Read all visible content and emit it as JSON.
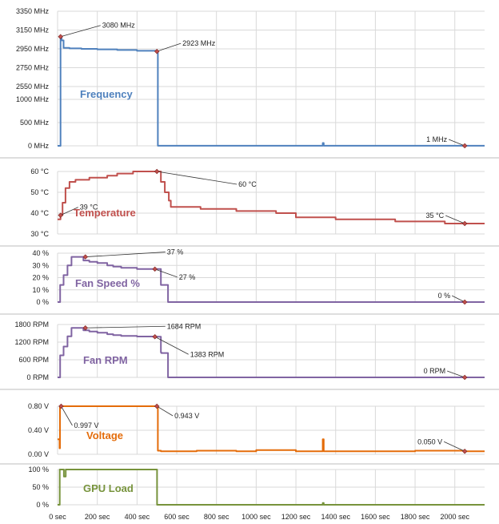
{
  "x_ticks": [
    "0 sec",
    "200 sec",
    "400 sec",
    "600 sec",
    "800 sec",
    "1000 sec",
    "1200 sec",
    "1400 sec",
    "1600 sec",
    "1800 sec",
    "2000 sec"
  ],
  "chart_data": [
    {
      "type": "line",
      "title": "Frequency",
      "color": "#4f81bd",
      "x_range": [
        0,
        2150
      ],
      "break_axis": true,
      "y_ticks_upper": [
        "3350 MHz",
        "3150 MHz",
        "2950 MHz",
        "2750 MHz",
        "2550 MHz"
      ],
      "y_ticks_lower": [
        "1000 MHz",
        "500 MHz",
        "0 MHz"
      ],
      "x": [
        0,
        12,
        15,
        20,
        30,
        60,
        120,
        200,
        300,
        400,
        495,
        500,
        505,
        1000,
        1330,
        1335,
        1340,
        2050,
        2150
      ],
      "y": [
        0,
        0,
        3080,
        3040,
        2960,
        2955,
        2950,
        2945,
        2938,
        2930,
        2923,
        2923,
        1,
        1,
        1,
        60,
        1,
        1,
        1
      ],
      "annotations": [
        {
          "label": "3080 MHz",
          "x": 15,
          "y": 3080
        },
        {
          "label": "2923 MHz",
          "x": 500,
          "y": 2923
        },
        {
          "label": "1 MHz",
          "x": 2050,
          "y": 1
        }
      ]
    },
    {
      "type": "line",
      "title": "Temperature",
      "color": "#c0504d",
      "x_range": [
        0,
        2150
      ],
      "y_ticks": [
        "60 °C",
        "50 °C",
        "40 °C",
        "30 °C"
      ],
      "x": [
        0,
        15,
        25,
        40,
        60,
        90,
        120,
        160,
        200,
        250,
        300,
        350,
        380,
        420,
        450,
        480,
        500,
        520,
        540,
        560,
        570,
        600,
        700,
        720,
        800,
        900,
        1000,
        1100,
        1150,
        1200,
        1300,
        1400,
        1500,
        1600,
        1700,
        1800,
        1900,
        1950,
        2000,
        2050,
        2150
      ],
      "y": [
        37,
        39,
        45,
        52,
        55,
        56,
        56,
        57,
        57,
        58,
        59,
        59,
        60,
        60,
        60,
        60,
        60,
        55,
        50,
        46,
        43,
        43,
        43,
        42,
        42,
        41,
        41,
        40,
        40,
        38,
        38,
        37,
        37,
        37,
        36,
        36,
        36,
        35,
        35,
        35,
        35
      ],
      "annotations": [
        {
          "label": "39 °C",
          "x": 15,
          "y": 39
        },
        {
          "label": "60 °C",
          "x": 500,
          "y": 60
        },
        {
          "label": "35 °C",
          "x": 2050,
          "y": 35
        }
      ]
    },
    {
      "type": "line",
      "title": "Fan Speed %",
      "color": "#8064a2",
      "x_range": [
        0,
        2150
      ],
      "y_ticks": [
        "40 %",
        "30 %",
        "20 %",
        "10 %",
        "0 %"
      ],
      "x": [
        0,
        12,
        13,
        30,
        50,
        70,
        90,
        120,
        130,
        160,
        200,
        250,
        280,
        320,
        400,
        480,
        500,
        520,
        522,
        555,
        556,
        2050,
        2150
      ],
      "y": [
        0,
        0,
        14,
        22,
        30,
        37,
        37,
        37,
        34,
        33,
        32,
        30,
        29,
        28,
        27,
        27,
        27,
        14,
        14,
        14,
        0,
        0,
        0
      ],
      "annotations": [
        {
          "label": "37 %",
          "x": 140,
          "y": 37
        },
        {
          "label": "27 %",
          "x": 490,
          "y": 27
        },
        {
          "label": "0 %",
          "x": 2050,
          "y": 0
        }
      ]
    },
    {
      "type": "line",
      "title": "Fan RPM",
      "color": "#8064a2",
      "x_range": [
        0,
        2150
      ],
      "y_ticks": [
        "1800 RPM",
        "1200 RPM",
        "600 RPM",
        "0 RPM"
      ],
      "x": [
        0,
        12,
        13,
        30,
        50,
        70,
        90,
        120,
        130,
        160,
        200,
        250,
        280,
        320,
        400,
        480,
        500,
        520,
        522,
        555,
        556,
        2050,
        2150
      ],
      "y": [
        0,
        0,
        750,
        1050,
        1400,
        1684,
        1684,
        1684,
        1600,
        1560,
        1520,
        1470,
        1440,
        1410,
        1390,
        1383,
        1383,
        850,
        830,
        830,
        0,
        0,
        0
      ],
      "annotations": [
        {
          "label": "1684 RPM",
          "x": 140,
          "y": 1684
        },
        {
          "label": "1383 RPM",
          "x": 490,
          "y": 1383
        },
        {
          "label": "0 RPM",
          "x": 2050,
          "y": 0
        }
      ]
    },
    {
      "type": "line",
      "title": "Voltage",
      "color": "#e46c0a",
      "x_range": [
        0,
        2150
      ],
      "y_ticks": [
        "0.80 V",
        "0.40 V",
        "0.00 V"
      ],
      "x": [
        0,
        10,
        12,
        18,
        25,
        40,
        100,
        200,
        300,
        400,
        495,
        500,
        505,
        520,
        700,
        900,
        1000,
        1200,
        1330,
        1335,
        1340,
        1600,
        1800,
        2050,
        2150
      ],
      "y": [
        0.25,
        0.1,
        0.99,
        0.997,
        0.96,
        0.955,
        0.952,
        0.95,
        0.948,
        0.945,
        0.943,
        0.943,
        0.06,
        0.05,
        0.06,
        0.05,
        0.07,
        0.05,
        0.05,
        0.25,
        0.05,
        0.05,
        0.06,
        0.05,
        0.05
      ],
      "annotations": [
        {
          "label": "0.997 V",
          "x": 18,
          "y": 0.997
        },
        {
          "label": "0.943 V",
          "x": 500,
          "y": 0.943
        },
        {
          "label": "0.050 V",
          "x": 2050,
          "y": 0.05
        }
      ]
    },
    {
      "type": "line",
      "title": "GPU Load",
      "color": "#77933c",
      "x_range": [
        0,
        2150
      ],
      "y_ticks": [
        "100 %",
        "50 %",
        "0 %"
      ],
      "x": [
        0,
        10,
        11,
        30,
        32,
        40,
        41,
        500,
        501,
        1330,
        1335,
        1340,
        2150
      ],
      "y": [
        0,
        0,
        100,
        100,
        80,
        80,
        100,
        100,
        0,
        0,
        5,
        0,
        0
      ],
      "annotations": []
    }
  ]
}
